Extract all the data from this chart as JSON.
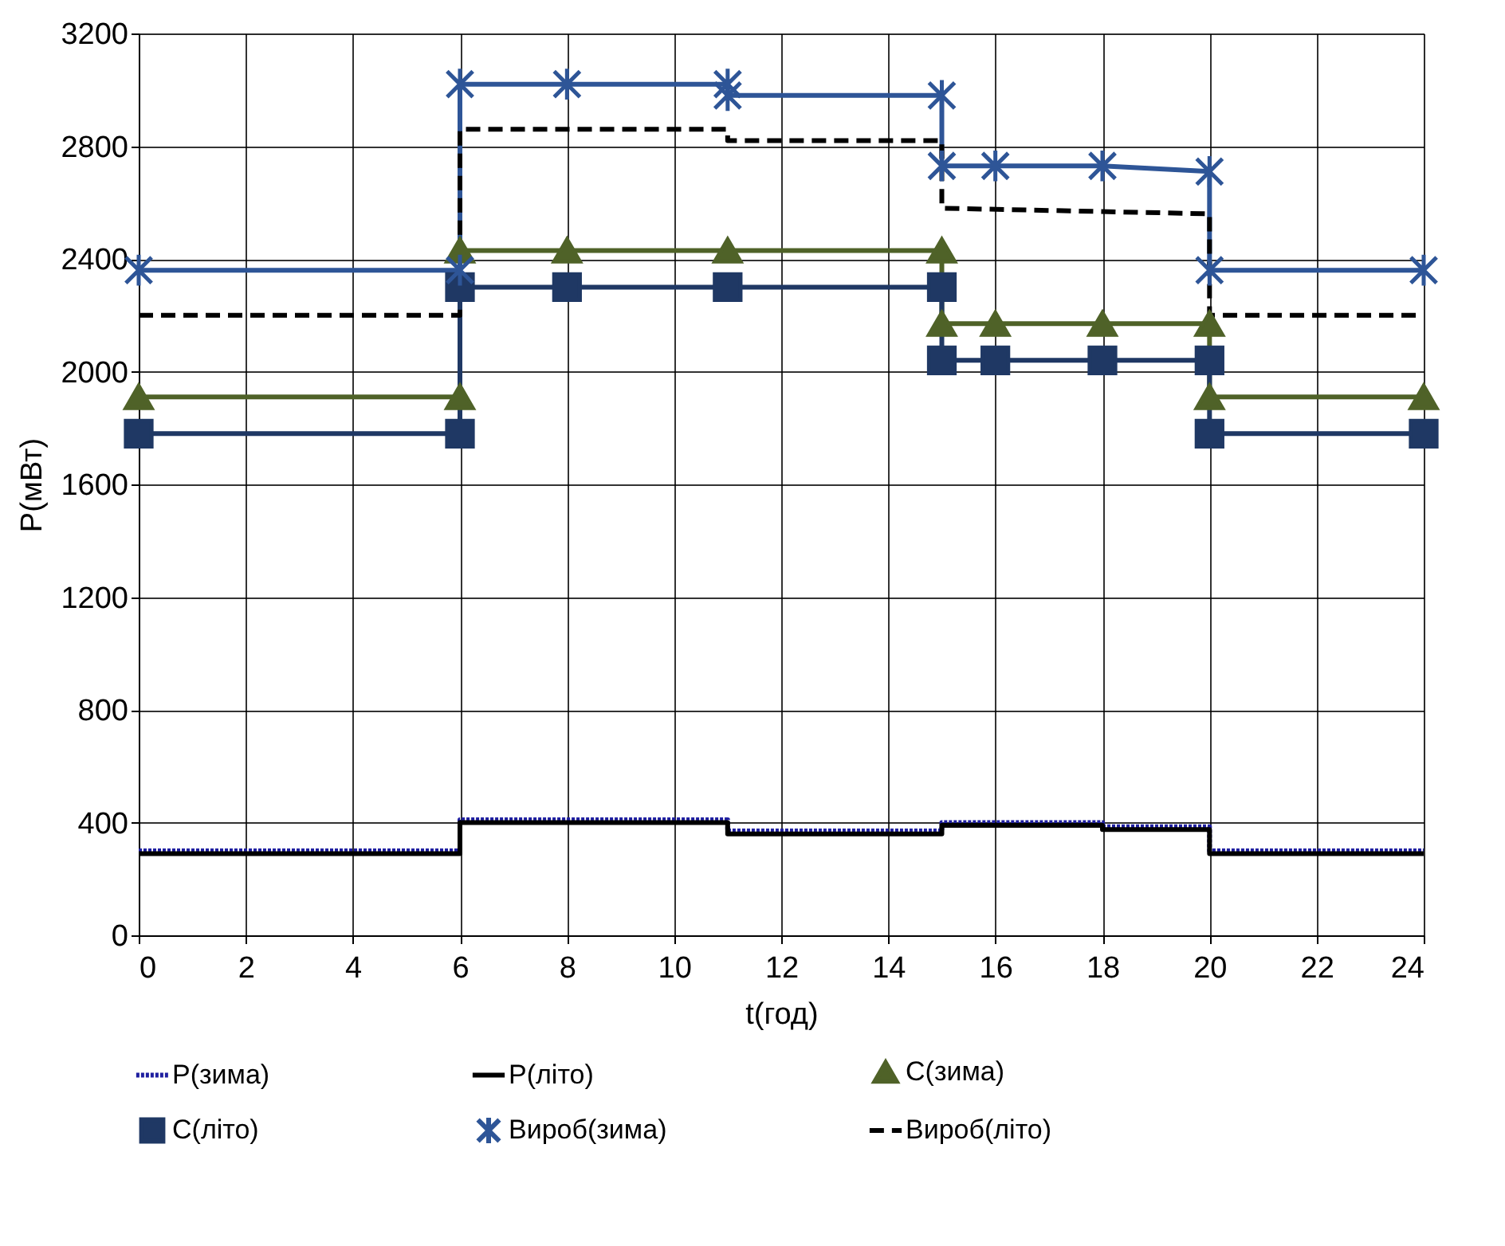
{
  "chart_data": {
    "type": "line",
    "xlabel": "t(год)",
    "ylabel": "P(мВт)",
    "xlim": [
      0,
      24
    ],
    "xticks": [
      0,
      2,
      4,
      6,
      8,
      10,
      12,
      14,
      16,
      18,
      20,
      22,
      24
    ],
    "ylim": [
      0,
      3200
    ],
    "yticks": [
      0,
      400,
      800,
      1200,
      1600,
      2000,
      2400,
      2800,
      3200
    ],
    "grid": true,
    "legend": "bottom",
    "series": [
      {
        "name": "P(зима)",
        "color": "#1f1fa0",
        "line_style": "dotted",
        "marker": "none",
        "x": [
          0,
          6,
          6,
          11,
          11,
          15,
          15,
          18,
          18,
          20,
          20,
          24
        ],
        "values": [
          300,
          300,
          410,
          410,
          370,
          370,
          400,
          400,
          385,
          385,
          300,
          300
        ]
      },
      {
        "name": "P(літо)",
        "color": "#000000",
        "line_style": "solid",
        "marker": "none",
        "x": [
          0,
          6,
          6,
          11,
          11,
          15,
          15,
          18,
          18,
          20,
          20,
          24
        ],
        "values": [
          290,
          290,
          400,
          400,
          360,
          360,
          390,
          390,
          375,
          375,
          290,
          290
        ]
      },
      {
        "name": "С(зима)",
        "color": "#4f6228",
        "line_style": "solid",
        "marker": "triangle",
        "x": [
          0,
          6,
          6,
          8,
          11,
          15,
          15,
          16,
          18,
          20,
          20,
          24
        ],
        "values": [
          1910,
          1910,
          2430,
          2430,
          2430,
          2430,
          2170,
          2170,
          2170,
          2170,
          1910,
          1910
        ]
      },
      {
        "name": "С(літо)",
        "color": "#1f3864",
        "line_style": "solid",
        "marker": "square",
        "x": [
          0,
          6,
          6,
          8,
          11,
          15,
          15,
          16,
          18,
          20,
          20,
          24
        ],
        "values": [
          1780,
          1780,
          2300,
          2300,
          2300,
          2300,
          2040,
          2040,
          2040,
          2040,
          1780,
          1780
        ]
      },
      {
        "name": "Вироб(зима)",
        "color": "#2e5597",
        "line_style": "solid",
        "marker": "cross",
        "x": [
          0,
          6,
          6,
          8,
          11,
          11,
          15,
          15,
          16,
          18,
          20,
          20,
          24
        ],
        "values": [
          2360,
          2360,
          3020,
          3020,
          3020,
          2980,
          2980,
          2730,
          2730,
          2730,
          2710,
          2360,
          2360
        ]
      },
      {
        "name": "Вироб(літо)",
        "color": "#000000",
        "line_style": "dashed",
        "marker": "none",
        "x": [
          0,
          6,
          6,
          11,
          11,
          15,
          15,
          20,
          20,
          24
        ],
        "values": [
          2200,
          2200,
          2860,
          2860,
          2820,
          2820,
          2580,
          2560,
          2200,
          2200
        ]
      }
    ]
  }
}
